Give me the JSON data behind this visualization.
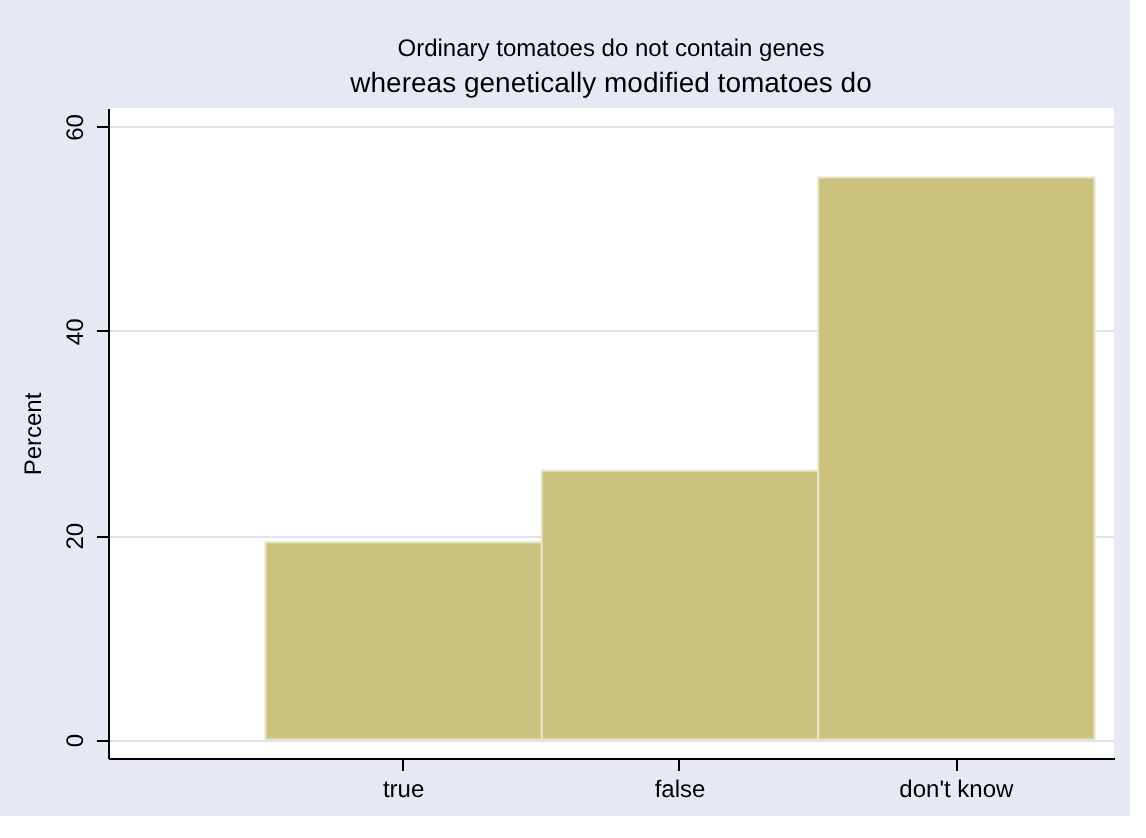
{
  "chart_data": {
    "type": "bar",
    "title": "Ordinary tomatoes do not contain genes",
    "subtitle": "whereas genetically modified tomatoes do",
    "categories": [
      "true",
      "false",
      "don't know"
    ],
    "values": [
      19.3,
      26.3,
      55.0
    ],
    "color": "#cbc27d",
    "ylabel": "Percent",
    "ylim": [
      -1.8,
      61.8
    ],
    "yticks": [
      0,
      20,
      40,
      60
    ],
    "grid": "y"
  }
}
